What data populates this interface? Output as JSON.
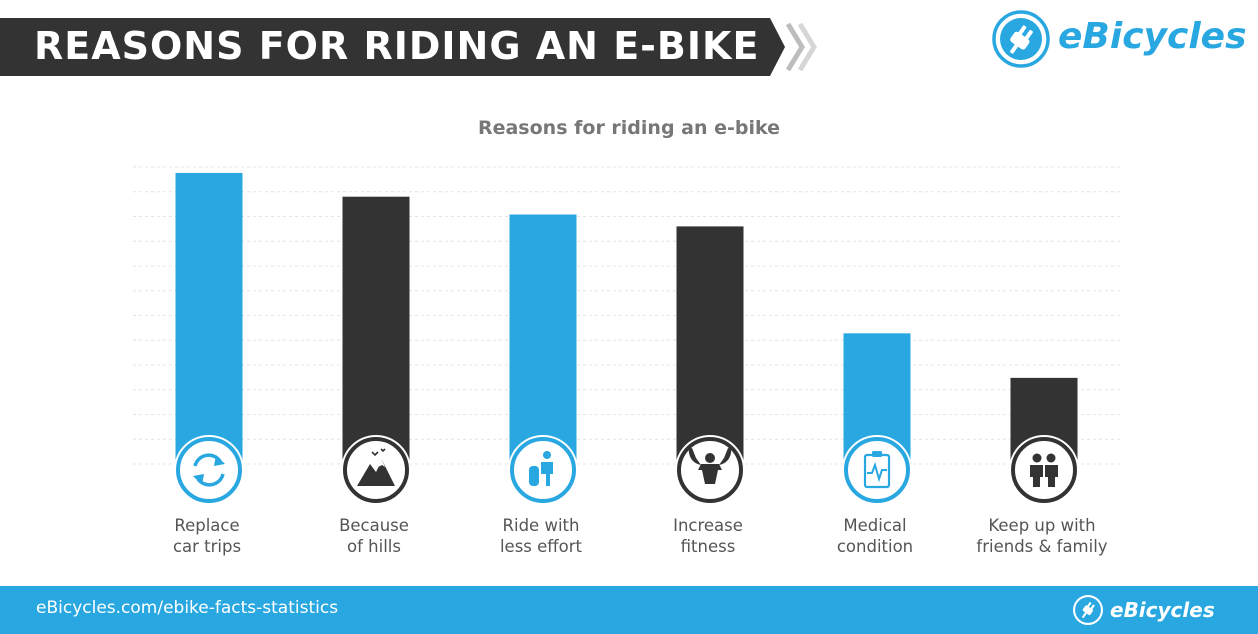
{
  "header": {
    "title": "REASONS FOR RIDING AN E-BIKE",
    "brand": "eBicycles"
  },
  "footer": {
    "url": "eBicycles.com/ebike-facts-statistics",
    "brand": "eBicycles"
  },
  "colors": {
    "blue": "#29a7e1",
    "dark": "#333333",
    "label": "#555555",
    "title": "#777777"
  },
  "chart_data": {
    "type": "bar",
    "title": "Reasons for riding an e-bike",
    "xlabel": "",
    "ylabel": "",
    "ylim": [
      0,
      100
    ],
    "grid": true,
    "categories": [
      {
        "line1": "Replace",
        "line2": "car trips",
        "icon": "refresh-icon"
      },
      {
        "line1": "Because",
        "line2": "of hills",
        "icon": "mountain-icon"
      },
      {
        "line1": "Ride with",
        "line2": "less effort",
        "icon": "rider-icon"
      },
      {
        "line1": "Increase",
        "line2": "fitness",
        "icon": "muscle-icon"
      },
      {
        "line1": "Medical",
        "line2": "condition",
        "icon": "clipboard-heartbeat-icon"
      },
      {
        "line1": "Keep up with",
        "line2": "friends & family",
        "icon": "people-icon"
      }
    ],
    "values": [
      98,
      90,
      84,
      80,
      44,
      29
    ],
    "bar_colors": [
      "#29a7e1",
      "#333333",
      "#29a7e1",
      "#333333",
      "#29a7e1",
      "#333333"
    ]
  }
}
